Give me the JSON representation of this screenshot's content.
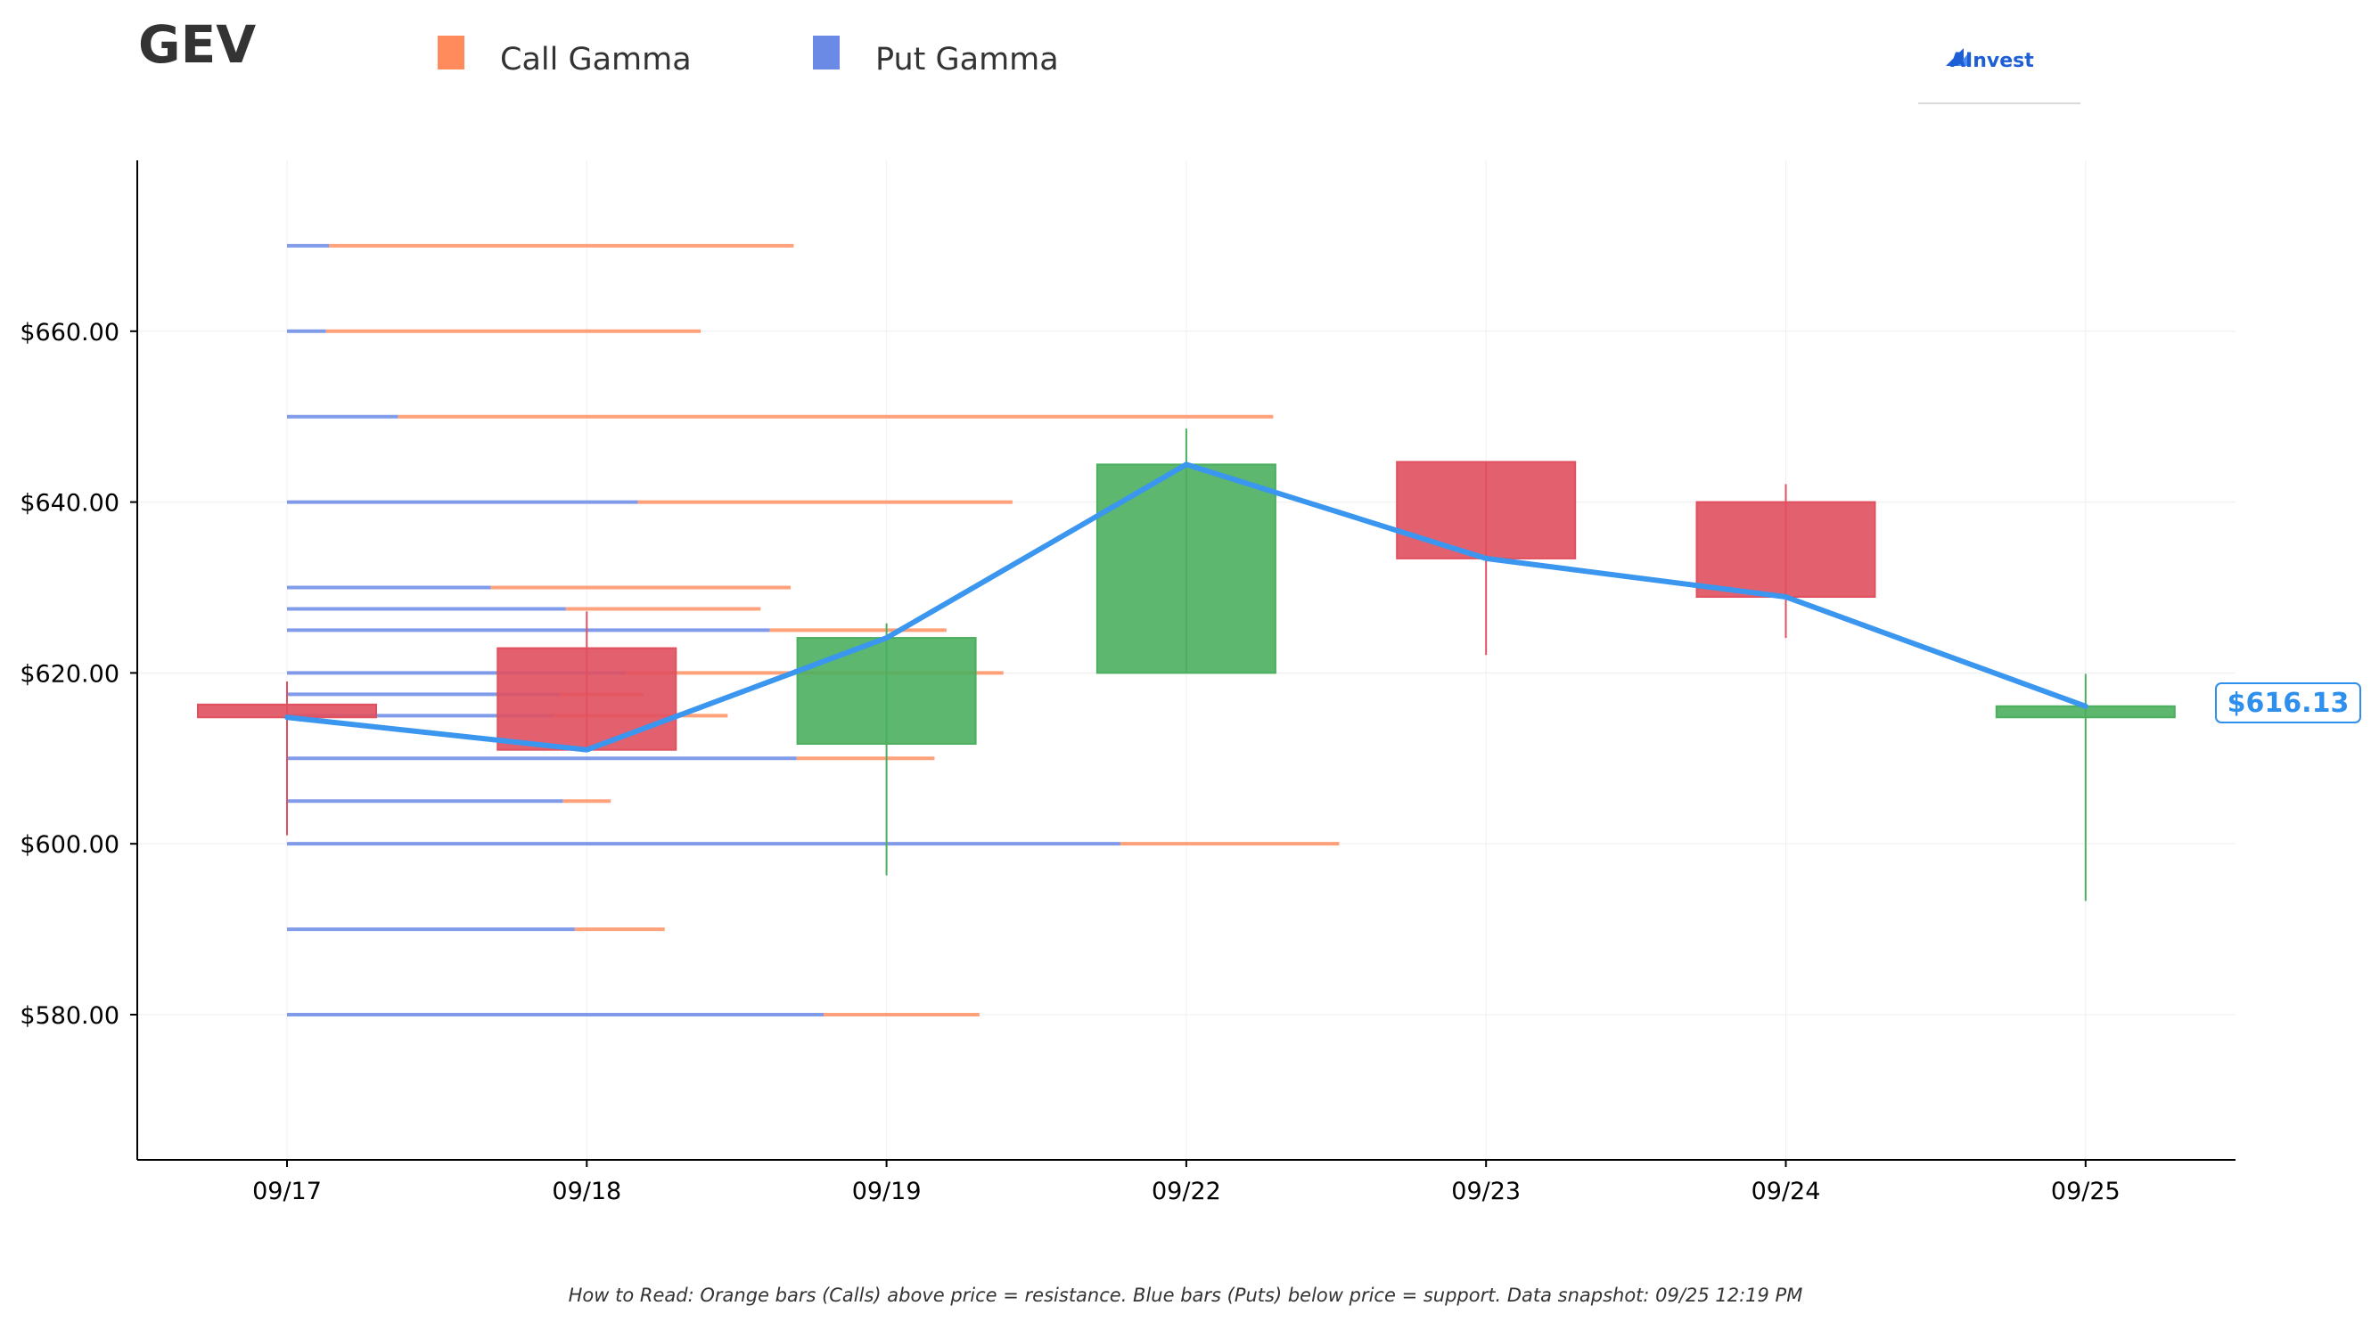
{
  "ticker": "GEV",
  "legend": [
    {
      "label": "Call Gamma",
      "color": "#ff8a5b"
    },
    {
      "label": "Put Gamma",
      "color": "#6b8ae6"
    }
  ],
  "logo": {
    "text": "AInvest",
    "icon": "ainvest-logo-icon"
  },
  "footer": "How to Read: Orange bars (Calls) above price = resistance. Blue bars (Puts) below price = support. Data snapshot: 09/25 12:19 PM",
  "current_price_label": "$616.13",
  "colors": {
    "up": "#4caf5f",
    "down": "#e0505f",
    "line": "#3a96ee",
    "call": "#ff8a5b",
    "put": "#6b8ae6",
    "price_box": "#2f8fec"
  },
  "chart_data": {
    "type": "candlestick",
    "categories": [
      "09/17",
      "09/18",
      "09/19",
      "09/22",
      "09/23",
      "09/24",
      "09/25"
    ],
    "ylim": [
      563,
      680
    ],
    "yticks": [
      580,
      600,
      620,
      640,
      660
    ],
    "ytick_labels": [
      "$580.00",
      "$600.00",
      "$620.00",
      "$640.00",
      "$660.00"
    ],
    "grid": true,
    "candles": [
      {
        "date": "09/17",
        "open": 616.3,
        "close": 614.8,
        "high": 619.0,
        "low": 601.0
      },
      {
        "date": "09/18",
        "open": 622.9,
        "close": 611.0,
        "high": 627.2,
        "low": 611.0
      },
      {
        "date": "09/19",
        "open": 611.7,
        "close": 624.1,
        "high": 625.8,
        "low": 596.3
      },
      {
        "date": "09/22",
        "open": 620.0,
        "close": 644.4,
        "high": 648.6,
        "low": 620.0
      },
      {
        "date": "09/23",
        "open": 644.7,
        "close": 633.4,
        "high": 644.7,
        "low": 622.1
      },
      {
        "date": "09/24",
        "open": 640.0,
        "close": 628.9,
        "high": 642.1,
        "low": 624.1
      },
      {
        "date": "09/25",
        "open": 614.8,
        "close": 616.1,
        "high": 619.9,
        "low": 593.3
      }
    ],
    "close_line": [
      614.8,
      611.0,
      624.1,
      644.4,
      633.4,
      628.9,
      616.1
    ],
    "gamma": {
      "unit_note": "horizontal extent in category-index units measured from 09/17",
      "levels": [
        {
          "strike": 670,
          "put": 0.14,
          "call": 1.69
        },
        {
          "strike": 660,
          "put": 0.13,
          "call": 1.38
        },
        {
          "strike": 650,
          "put": 0.37,
          "call": 3.29
        },
        {
          "strike": 640,
          "put": 1.17,
          "call": 2.42
        },
        {
          "strike": 630,
          "put": 0.68,
          "call": 1.68
        },
        {
          "strike": 627.5,
          "put": 0.93,
          "call": 1.58
        },
        {
          "strike": 625,
          "put": 1.61,
          "call": 2.2
        },
        {
          "strike": 620,
          "put": 1.13,
          "call": 2.39
        },
        {
          "strike": 617.5,
          "put": 0.91,
          "call": 1.19
        },
        {
          "strike": 615,
          "put": 0.89,
          "call": 1.47
        },
        {
          "strike": 610,
          "put": 1.7,
          "call": 2.16
        },
        {
          "strike": 605,
          "put": 0.92,
          "call": 1.08
        },
        {
          "strike": 600,
          "put": 2.78,
          "call": 3.51
        },
        {
          "strike": 590,
          "put": 0.96,
          "call": 1.26
        },
        {
          "strike": 580,
          "put": 1.79,
          "call": 2.31
        }
      ]
    }
  }
}
